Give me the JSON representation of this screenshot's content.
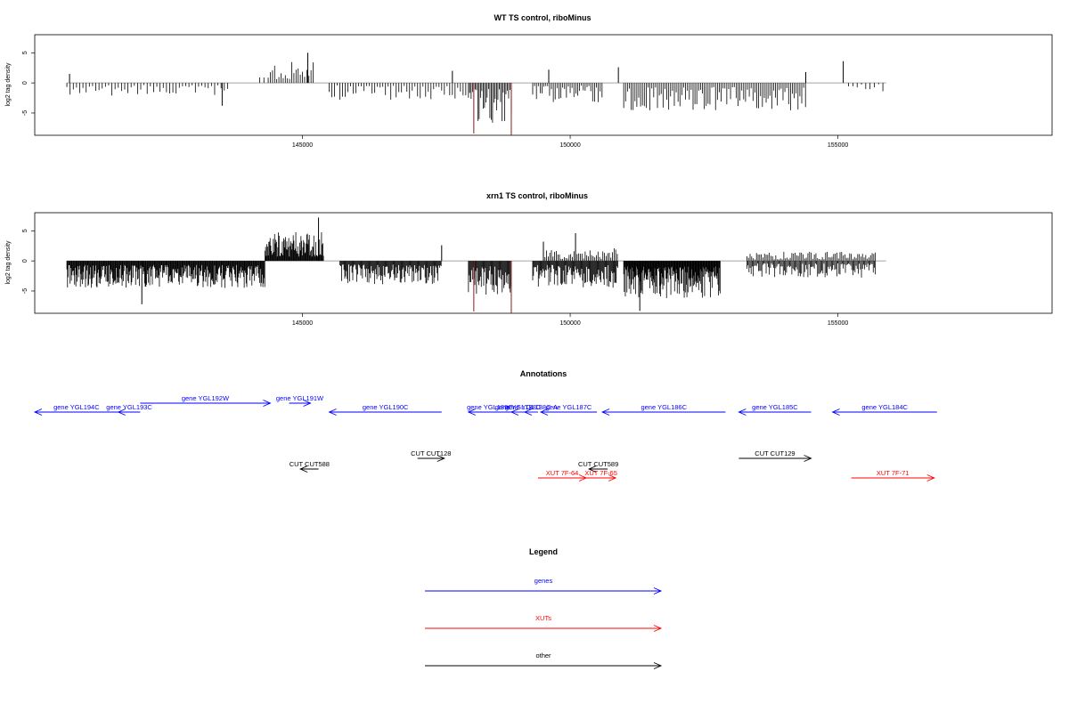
{
  "chart_data": [
    {
      "type": "bar",
      "title": "WT TS control, riboMinus",
      "ylabel": "log2 tag density",
      "xlim": [
        140000,
        159000
      ],
      "ylim": [
        -8.7,
        8
      ],
      "xticks": [
        145000,
        150000,
        155000
      ],
      "xtick_labels": [
        "145000",
        "150000",
        "155000"
      ],
      "yticks": [
        -5,
        0,
        5
      ],
      "ytick_labels": [
        "-5",
        "0",
        "5"
      ],
      "highlight_color": "#8b1a1a",
      "regions": [
        {
          "start": 140600,
          "end": 143600,
          "sign": -1,
          "amp": 2.4,
          "step": 60
        },
        {
          "start": 144200,
          "end": 144400,
          "sign": 1,
          "amp": 1.2,
          "step": 80
        },
        {
          "start": 144400,
          "end": 145200,
          "sign": 1,
          "amp": 3.5,
          "step": 40
        },
        {
          "start": 145500,
          "end": 148100,
          "sign": -1,
          "amp": 2.8,
          "step": 50
        },
        {
          "start": 148100,
          "end": 148900,
          "sign": -1,
          "amp": 6.8,
          "step": 25
        },
        {
          "start": 149300,
          "end": 150600,
          "sign": -1,
          "amp": 3.2,
          "step": 35
        },
        {
          "start": 151000,
          "end": 154400,
          "sign": -1,
          "amp": 4.6,
          "step": 35
        },
        {
          "start": 155200,
          "end": 155900,
          "sign": -1,
          "amp": 1.5,
          "step": 80
        }
      ],
      "spikes": [
        {
          "x": 148200,
          "y": -8.4,
          "hl": true
        },
        {
          "x": 148900,
          "y": -8.7,
          "hl": true
        },
        {
          "x": 147800,
          "y": 2.0
        },
        {
          "x": 149600,
          "y": 2.2
        },
        {
          "x": 150900,
          "y": 2.6
        },
        {
          "x": 154400,
          "y": 1.8
        },
        {
          "x": 155100,
          "y": 3.6
        },
        {
          "x": 145100,
          "y": 5.0
        },
        {
          "x": 140650,
          "y": 1.5
        },
        {
          "x": 143500,
          "y": -3.8
        }
      ]
    },
    {
      "type": "bar",
      "title": "xrn1 TS control, riboMinus",
      "ylabel": "log2 tag density",
      "xlim": [
        140000,
        159000
      ],
      "ylim": [
        -8.7,
        8
      ],
      "xticks": [
        145000,
        150000,
        155000
      ],
      "xtick_labels": [
        "145000",
        "150000",
        "155000"
      ],
      "yticks": [
        -5,
        0,
        5
      ],
      "ytick_labels": [
        "-5",
        "0",
        "5"
      ],
      "highlight_color": "#8b1a1a",
      "regions": [
        {
          "start": 140600,
          "end": 144300,
          "sign": -1,
          "amp": 4.5,
          "step": 12
        },
        {
          "start": 144300,
          "end": 145400,
          "sign": 1,
          "amp": 4.8,
          "step": 12
        },
        {
          "start": 145700,
          "end": 147600,
          "sign": -1,
          "amp": 4.0,
          "step": 15
        },
        {
          "start": 148100,
          "end": 148900,
          "sign": -1,
          "amp": 5.8,
          "step": 15
        },
        {
          "start": 149300,
          "end": 150900,
          "sign": -1,
          "amp": 4.5,
          "step": 15
        },
        {
          "start": 151000,
          "end": 152800,
          "sign": -1,
          "amp": 6.2,
          "step": 10
        },
        {
          "start": 153300,
          "end": 155700,
          "sign": -1,
          "amp": 2.8,
          "step": 20
        },
        {
          "start": 149500,
          "end": 150900,
          "sign": 1,
          "amp": 2.2,
          "step": 30
        },
        {
          "start": 153300,
          "end": 155700,
          "sign": 1,
          "amp": 1.6,
          "step": 30
        }
      ],
      "spikes": [
        {
          "x": 148200,
          "y": -8.4,
          "hl": true
        },
        {
          "x": 148900,
          "y": -8.7,
          "hl": true
        },
        {
          "x": 145300,
          "y": 7.2
        },
        {
          "x": 150100,
          "y": 4.6
        },
        {
          "x": 147600,
          "y": 2.6
        },
        {
          "x": 151300,
          "y": -8.3
        },
        {
          "x": 142000,
          "y": -7.2
        },
        {
          "x": 149500,
          "y": 3.2
        }
      ]
    }
  ],
  "annotations": {
    "title": "Annotations",
    "colors": {
      "genes": "#0000ff",
      "XUTs": "#ff0000",
      "other": "#000000"
    },
    "features": [
      {
        "label": "gene YGL194C",
        "kind": "genes",
        "start": 140000,
        "end": 141560,
        "dir": -1,
        "row": 1
      },
      {
        "label": "gene YGL193C",
        "kind": "genes",
        "start": 141560,
        "end": 141970,
        "dir": -1,
        "row": 1
      },
      {
        "label": "gene YGL192W",
        "kind": "genes",
        "start": 141970,
        "end": 144400,
        "dir": 1,
        "row": 0
      },
      {
        "label": "gene YGL191W",
        "kind": "genes",
        "start": 144750,
        "end": 145150,
        "dir": 1,
        "row": 0
      },
      {
        "label": "gene YGL190C",
        "kind": "genes",
        "start": 145500,
        "end": 147600,
        "dir": -1,
        "row": 1
      },
      {
        "label": "gene YGL189C",
        "kind": "genes",
        "start": 148100,
        "end": 148900,
        "dir": -1,
        "row": 1
      },
      {
        "label": "gene YGL188C",
        "kind": "genes",
        "start": 148900,
        "end": 149150,
        "dir": -1,
        "row": 1
      },
      {
        "label": "gene YGL188C-A",
        "kind": "genes",
        "start": 149150,
        "end": 149400,
        "dir": -1,
        "row": 1
      },
      {
        "label": "gene YGL187C",
        "kind": "genes",
        "start": 149450,
        "end": 150500,
        "dir": -1,
        "row": 1
      },
      {
        "label": "gene YGL186C",
        "kind": "genes",
        "start": 150600,
        "end": 152900,
        "dir": -1,
        "row": 1
      },
      {
        "label": "gene YGL185C",
        "kind": "genes",
        "start": 153150,
        "end": 154500,
        "dir": -1,
        "row": 1
      },
      {
        "label": "gene YGL184C",
        "kind": "genes",
        "start": 154900,
        "end": 156850,
        "dir": -1,
        "row": 1
      },
      {
        "label": "CUT CUT588",
        "kind": "other",
        "start": 144960,
        "end": 145300,
        "dir": -1,
        "row": 3
      },
      {
        "label": "CUT CUT128",
        "kind": "other",
        "start": 147150,
        "end": 147650,
        "dir": 1,
        "row": 2
      },
      {
        "label": "CUT CUT589",
        "kind": "other",
        "start": 150350,
        "end": 150700,
        "dir": -1,
        "row": 3
      },
      {
        "label": "CUT CUT129",
        "kind": "other",
        "start": 153150,
        "end": 154500,
        "dir": 1,
        "row": 2
      },
      {
        "label": "XUT 7F-64",
        "kind": "XUTs",
        "start": 149400,
        "end": 150300,
        "dir": 1,
        "row": 4
      },
      {
        "label": "XUT 7F-65",
        "kind": "XUTs",
        "start": 150300,
        "end": 150850,
        "dir": 1,
        "row": 4
      },
      {
        "label": "XUT 7F-71",
        "kind": "XUTs",
        "start": 155250,
        "end": 156800,
        "dir": 1,
        "row": 4
      }
    ]
  },
  "legend": {
    "title": "Legend",
    "items": [
      {
        "label": "genes",
        "color": "#0000ff"
      },
      {
        "label": "XUTs",
        "color": "#ff0000"
      },
      {
        "label": "other",
        "color": "#000000"
      }
    ]
  }
}
